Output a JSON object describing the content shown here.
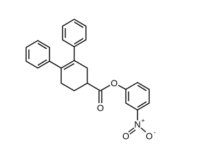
{
  "atoms": [
    {
      "label": "O"
    },
    {
      "label": "O"
    },
    {
      "label": "N",
      "charge": "+"
    },
    {
      "label": "O"
    },
    {
      "label": "O",
      "charge": "-"
    }
  ]
}
